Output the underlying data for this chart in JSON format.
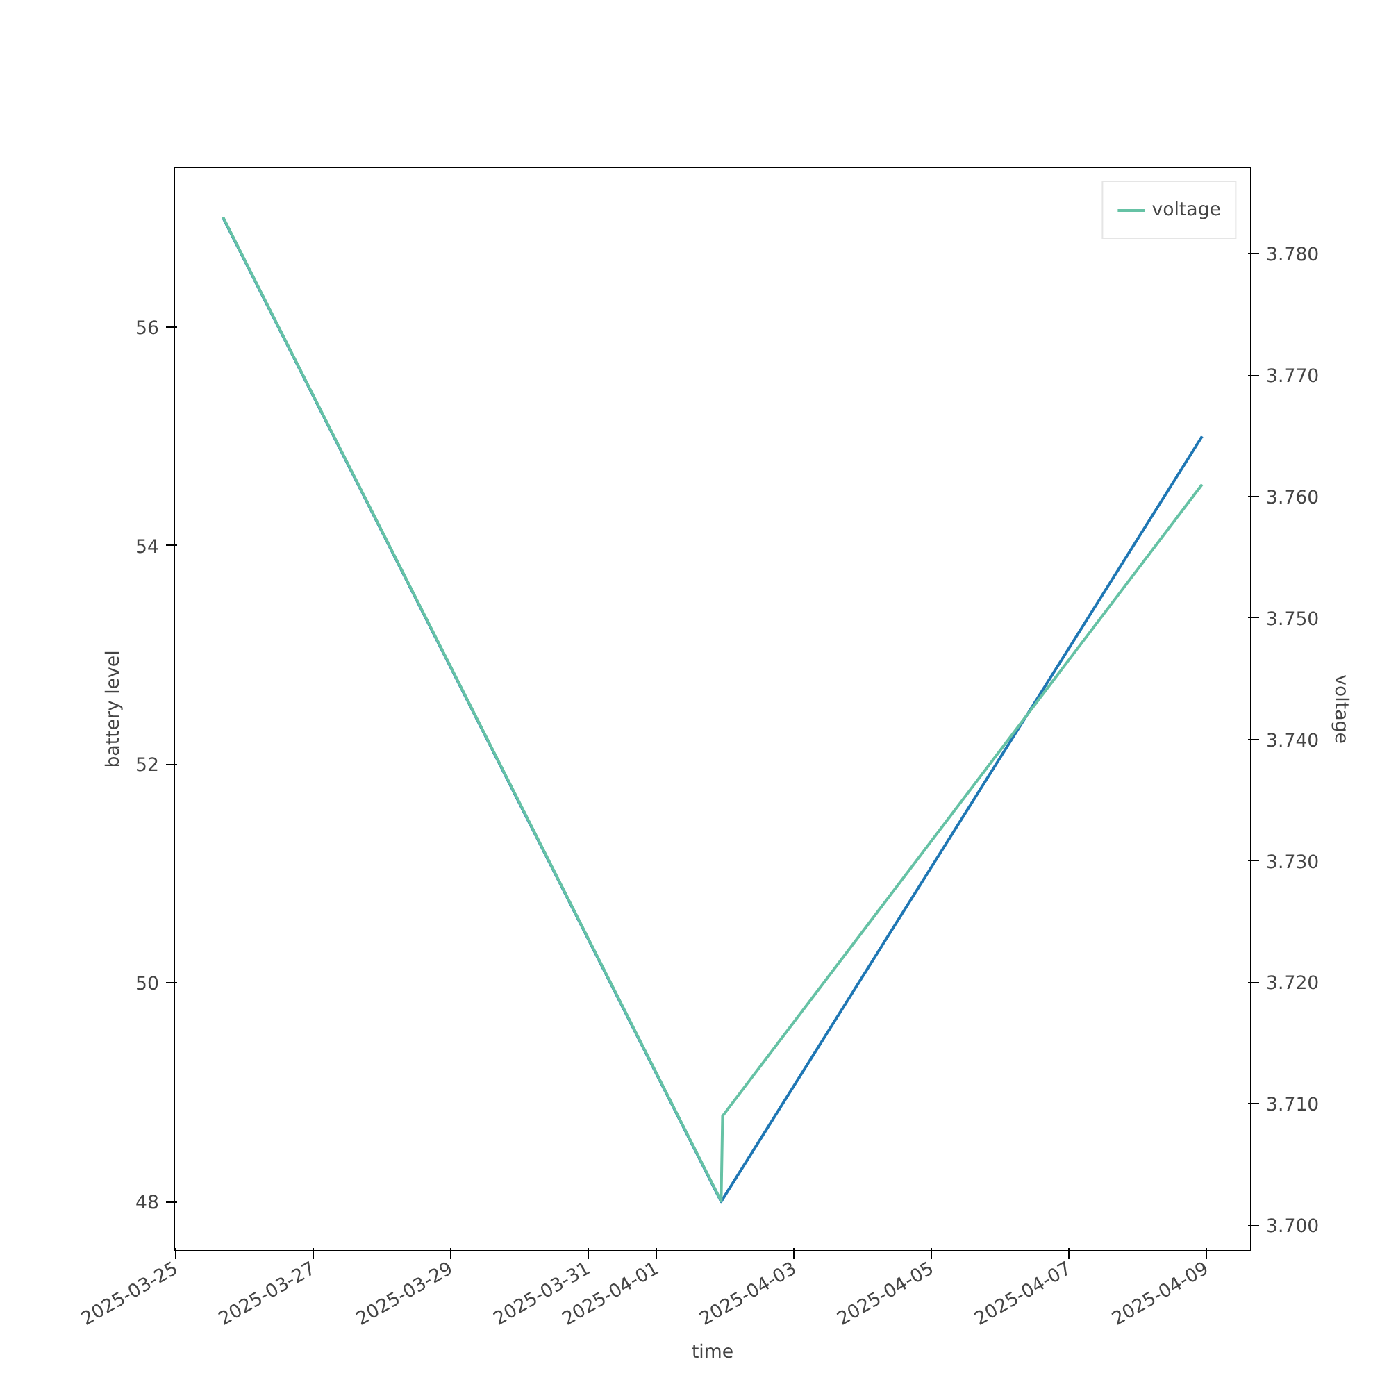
{
  "chart_data": {
    "type": "line",
    "xlabel": "time",
    "ylabel": "battery level",
    "y2label": "voltage",
    "xlim": [
      "2025-03-24T23:30",
      "2025-04-09T15:30"
    ],
    "xticks": [
      {
        "value": "2025-03-25",
        "label": "2025-03-25"
      },
      {
        "value": "2025-03-27",
        "label": "2025-03-27"
      },
      {
        "value": "2025-03-29",
        "label": "2025-03-29"
      },
      {
        "value": "2025-03-31",
        "label": "2025-03-31"
      },
      {
        "value": "2025-04-01",
        "label": "2025-04-01"
      },
      {
        "value": "2025-04-03",
        "label": "2025-04-03"
      },
      {
        "value": "2025-04-05",
        "label": "2025-04-05"
      },
      {
        "value": "2025-04-07",
        "label": "2025-04-07"
      },
      {
        "value": "2025-04-09",
        "label": "2025-04-09"
      }
    ],
    "ylim": [
      47.55,
      57.46
    ],
    "yticks": [
      48,
      50,
      52,
      54,
      56
    ],
    "y2lim": [
      3.6979,
      3.7871
    ],
    "y2ticks": [
      {
        "value": 3.7,
        "label": "3.700"
      },
      {
        "value": 3.71,
        "label": "3.710"
      },
      {
        "value": 3.72,
        "label": "3.720"
      },
      {
        "value": 3.73,
        "label": "3.730"
      },
      {
        "value": 3.74,
        "label": "3.740"
      },
      {
        "value": 3.75,
        "label": "3.750"
      },
      {
        "value": 3.76,
        "label": "3.760"
      },
      {
        "value": 3.77,
        "label": "3.770"
      },
      {
        "value": 3.78,
        "label": "3.780"
      }
    ],
    "legend": "top right",
    "grid": false,
    "series": [
      {
        "color": "#1f77b4",
        "x": [
          "2025-03-25T16:30",
          "2025-04-01T22:30",
          "2025-04-08T22:30"
        ],
        "values": [
          57,
          48,
          55
        ]
      },
      {
        "name": "voltage",
        "color": "#66c2a5",
        "axis": "y2",
        "x": [
          "2025-03-25T16:30",
          "2025-04-01T22:30",
          "2025-04-01T23:00",
          "2025-04-08T22:30"
        ],
        "values": [
          3.783,
          3.702,
          3.709,
          3.761
        ]
      }
    ]
  }
}
